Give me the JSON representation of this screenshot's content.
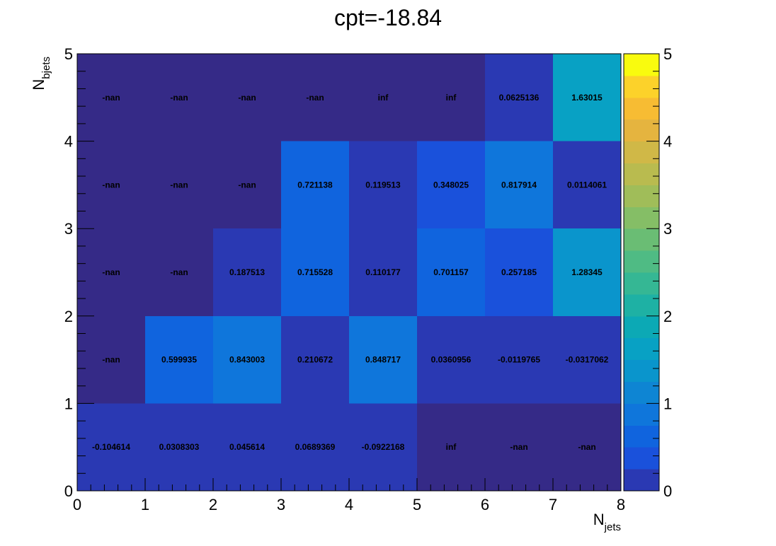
{
  "chart_data": {
    "type": "heatmap",
    "title": "cpt=-18.84",
    "xlabel": {
      "main": "N",
      "sub": "jets"
    },
    "ylabel": {
      "main": "N",
      "sub": "bjets"
    },
    "xlim": [
      0,
      8
    ],
    "ylim": [
      0,
      5
    ],
    "x_ticks": [
      "0",
      "1",
      "2",
      "3",
      "4",
      "5",
      "6",
      "7",
      "8"
    ],
    "y_ticks": [
      "0",
      "1",
      "2",
      "3",
      "4",
      "5"
    ],
    "colorbar": {
      "range": [
        0,
        5
      ],
      "ticks": [
        "0",
        "1",
        "2",
        "3",
        "4",
        "5"
      ],
      "steps": 20
    },
    "rows": [
      {
        "y": 4,
        "values": [
          null,
          null,
          null,
          null,
          null,
          null,
          0.0625136,
          1.63015
        ],
        "labels": [
          "-nan",
          "-nan",
          "-nan",
          "-nan",
          "inf",
          "inf",
          "0.0625136",
          "1.63015"
        ]
      },
      {
        "y": 3,
        "values": [
          null,
          null,
          null,
          0.721138,
          0.119513,
          0.348025,
          0.817914,
          0.0114061
        ],
        "labels": [
          "-nan",
          "-nan",
          "-nan",
          "0.721138",
          "0.119513",
          "0.348025",
          "0.817914",
          "0.0114061"
        ]
      },
      {
        "y": 2,
        "values": [
          null,
          null,
          0.187513,
          0.715528,
          0.110177,
          0.701157,
          0.257185,
          1.28345
        ],
        "labels": [
          "-nan",
          "-nan",
          "0.187513",
          "0.715528",
          "0.110177",
          "0.701157",
          "0.257185",
          "1.28345"
        ]
      },
      {
        "y": 1,
        "values": [
          null,
          0.599935,
          0.843003,
          0.210672,
          0.848717,
          0.0360956,
          -0.0119765,
          -0.0317062
        ],
        "labels": [
          "-nan",
          "0.599935",
          "0.843003",
          "0.210672",
          "0.848717",
          "0.0360956",
          "-0.0119765",
          "-0.0317062"
        ]
      },
      {
        "y": 0,
        "values": [
          -0.104614,
          0.0308303,
          0.045614,
          0.0689369,
          -0.0922168,
          null,
          null,
          null
        ],
        "labels": [
          "-0.104614",
          "0.0308303",
          "0.045614",
          "0.0689369",
          "-0.0922168",
          "inf",
          "-nan",
          "-nan"
        ]
      }
    ],
    "palette": [
      "#352a87",
      "#2a39b3",
      "#1a51db",
      "#1064de",
      "#0f76db",
      "#0e85d3",
      "#0a95cc",
      "#08a1c4",
      "#0ca9b5",
      "#1eb1a4",
      "#35b794",
      "#4fbb84",
      "#6abd74",
      "#85be66",
      "#a0bd59",
      "#b9bb4f",
      "#d0b847",
      "#e5b43f",
      "#f7bc33",
      "#fcd22a",
      "#f9fb0e"
    ],
    "empty_color": "#352a87",
    "grid": false
  }
}
